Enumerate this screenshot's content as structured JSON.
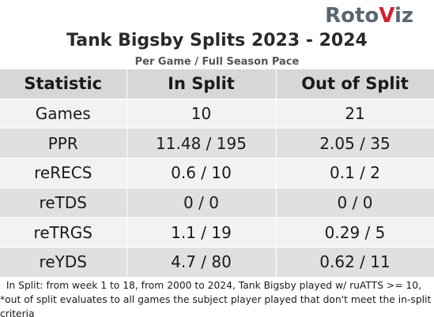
{
  "logo": {
    "prefix": "Roto",
    "v": "V",
    "suffix": "iz"
  },
  "title": "Tank Bigsby Splits 2023 - 2024",
  "subtitle": "Per Game / Full Season Pace",
  "table": {
    "headers": [
      "Statistic",
      "In Split",
      "Out of Split"
    ],
    "rows": [
      {
        "stat": "Games",
        "in_split": "10",
        "out_split": "21"
      },
      {
        "stat": "PPR",
        "in_split": "11.48 / 195",
        "out_split": "2.05 / 35"
      },
      {
        "stat": "reRECS",
        "in_split": "0.6 / 10",
        "out_split": "0.1 / 2"
      },
      {
        "stat": "reTDS",
        "in_split": "0 / 0",
        "out_split": "0 / 0"
      },
      {
        "stat": "reTRGS",
        "in_split": "1.1 / 19",
        "out_split": "0.29 / 5"
      },
      {
        "stat": "reYDS",
        "in_split": "4.7 / 80",
        "out_split": "0.62 / 11"
      }
    ]
  },
  "footnote": "  In Split: from week 1 to 18, from 2000 to 2024, Tank Bigsby played w/ ruATTS >= 10,  *out of split evaluates to all games the subject player played that don't meet the in-split criteria",
  "colors": {
    "header_bg": "#d7d7d7",
    "row_light": "#f2f2f2",
    "row_dark": "#e0e0e0",
    "logo_gray": "#5b6770",
    "logo_red": "#d0202e"
  }
}
